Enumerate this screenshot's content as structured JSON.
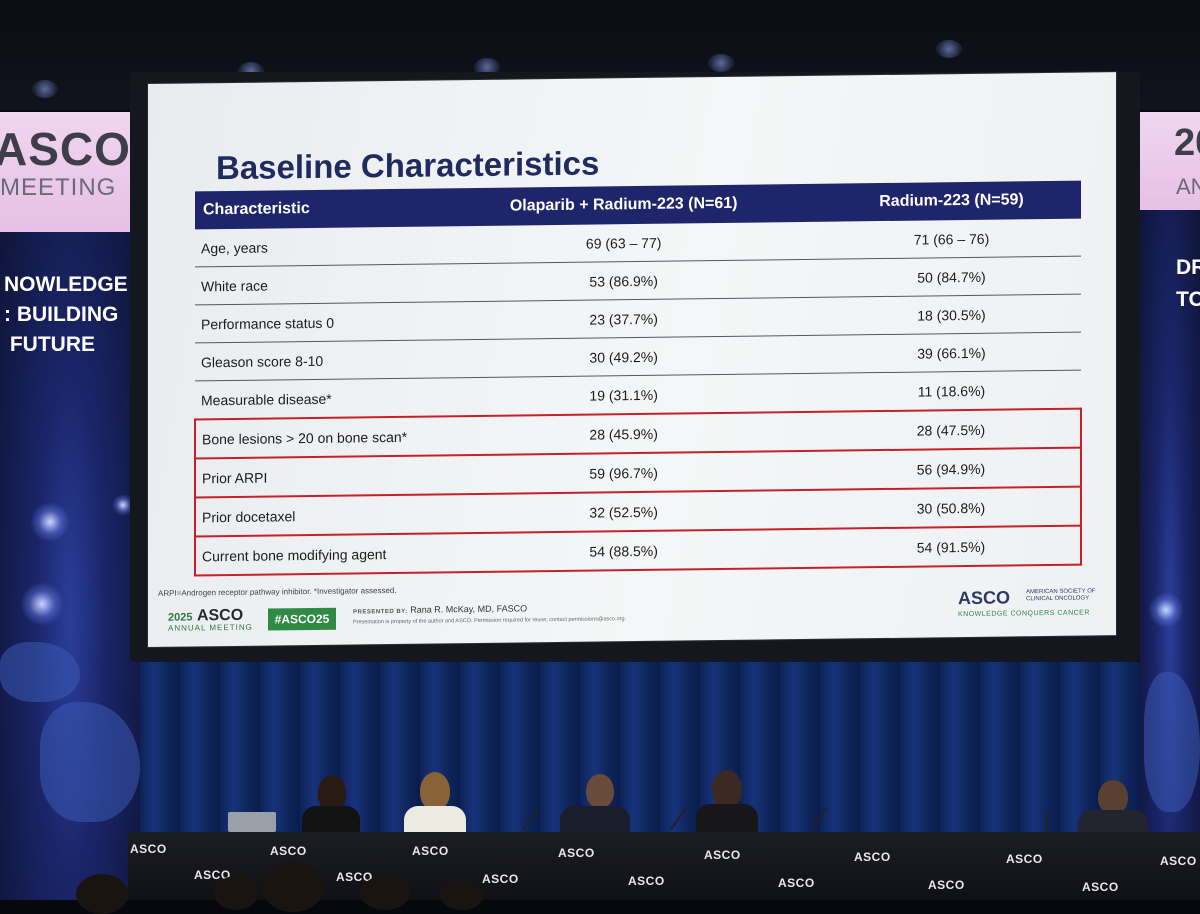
{
  "slide": {
    "title": "Baseline Characteristics",
    "table": {
      "headers": [
        "Characteristic",
        "Olaparib + Radium-223 (N=61)",
        "Radium-223 (N=59)"
      ],
      "rows": [
        {
          "characteristic": "Age, years",
          "olaparib_radium": "69 (63 – 77)",
          "radium": "71 (66 – 76)",
          "highlighted": false
        },
        {
          "characteristic": "White race",
          "olaparib_radium": "53 (86.9%)",
          "radium": "50 (84.7%)",
          "highlighted": false
        },
        {
          "characteristic": "Performance status 0",
          "olaparib_radium": "23 (37.7%)",
          "radium": "18 (30.5%)",
          "highlighted": false
        },
        {
          "characteristic": "Gleason score 8-10",
          "olaparib_radium": "30 (49.2%)",
          "radium": "39 (66.1%)",
          "highlighted": false
        },
        {
          "characteristic": "Measurable disease*",
          "olaparib_radium": "19 (31.1%)",
          "radium": "11 (18.6%)",
          "highlighted": false
        },
        {
          "characteristic": "Bone lesions > 20 on bone scan*",
          "olaparib_radium": "28 (45.9%)",
          "radium": "28 (47.5%)",
          "highlighted": true
        },
        {
          "characteristic": "Prior ARPI",
          "olaparib_radium": "59 (96.7%)",
          "radium": "56 (94.9%)",
          "highlighted": true
        },
        {
          "characteristic": "Prior docetaxel",
          "olaparib_radium": "32 (52.5%)",
          "radium": "30 (50.8%)",
          "highlighted": true
        },
        {
          "characteristic": "Current bone modifying agent",
          "olaparib_radium": "54 (88.5%)",
          "radium": "54 (91.5%)",
          "highlighted": true
        }
      ]
    },
    "footnote": "ARPI=Androgen receptor pathway inhibitor. *Investigator assessed.",
    "footer": {
      "meeting_year": "2025",
      "meeting_brand": "ASCO",
      "meeting_sub": "ANNUAL MEETING",
      "hashtag": "#ASCO25",
      "presented_label": "PRESENTED BY:",
      "presenter": "Rana R. McKay, MD, FASCO",
      "permission_note": "Presentation is property of the author and ASCO. Permission required for reuse; contact permissions@asco.org.",
      "society_brand": "ASCO",
      "society_name": "AMERICAN SOCIETY OF CLINICAL ONCOLOGY",
      "society_tagline": "KNOWLEDGE CONQUERS CANCER"
    },
    "colors": {
      "header_bg": "#1f256b",
      "title": "#1f2a5e",
      "highlight": "#c8202a",
      "hashtag_bg": "#2f8a44"
    }
  },
  "left_banner": {
    "logo": "ASCO",
    "meeting": "MEETING",
    "theme_lines": [
      "NOWLEDGE",
      ": BUILDING",
      " FUTURE"
    ]
  },
  "right_banner": {
    "year": "20",
    "sub": "AN",
    "theme_lines": [
      "DR",
      "TO"
    ]
  },
  "desk": {
    "logo": "ASCO"
  }
}
